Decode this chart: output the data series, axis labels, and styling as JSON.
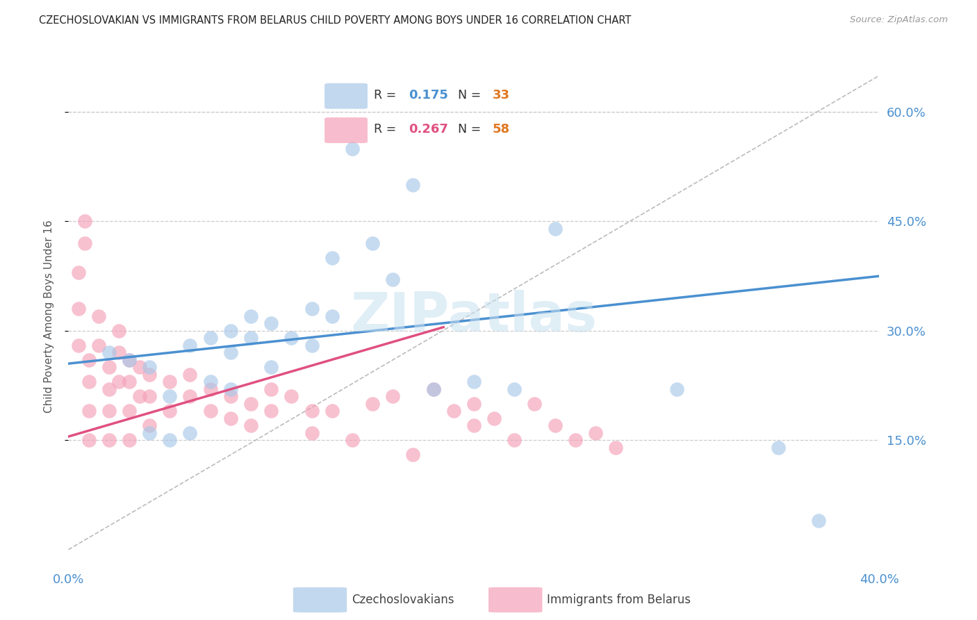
{
  "title": "CZECHOSLOVAKIAN VS IMMIGRANTS FROM BELARUS CHILD POVERTY AMONG BOYS UNDER 16 CORRELATION CHART",
  "source": "Source: ZipAtlas.com",
  "ylabel": "Child Poverty Among Boys Under 16",
  "ytick_labels": [
    "60.0%",
    "45.0%",
    "30.0%",
    "15.0%"
  ],
  "ytick_values": [
    0.6,
    0.45,
    0.3,
    0.15
  ],
  "xlim": [
    0.0,
    0.4
  ],
  "ylim": [
    -0.02,
    0.66
  ],
  "color_blue": "#a8c8e8",
  "color_pink": "#f4a0b8",
  "color_blue_line": "#4a90d0",
  "color_pink_line": "#e05080",
  "color_diag_line": "#bbbbbb",
  "color_title": "#222222",
  "color_source": "#999999",
  "color_axis_blue": "#4a90d0",
  "color_n_orange": "#e07820",
  "watermark": "ZIPatlas",
  "legend_r1": "0.175",
  "legend_n1": "33",
  "legend_r2": "0.267",
  "legend_n2": "58",
  "blue_scatter_x": [
    0.02,
    0.03,
    0.04,
    0.04,
    0.05,
    0.05,
    0.06,
    0.06,
    0.07,
    0.07,
    0.08,
    0.08,
    0.08,
    0.09,
    0.09,
    0.1,
    0.1,
    0.11,
    0.12,
    0.12,
    0.13,
    0.13,
    0.14,
    0.15,
    0.16,
    0.17,
    0.18,
    0.2,
    0.22,
    0.24,
    0.3,
    0.35,
    0.37
  ],
  "blue_scatter_y": [
    0.27,
    0.26,
    0.25,
    0.16,
    0.21,
    0.15,
    0.28,
    0.16,
    0.29,
    0.23,
    0.27,
    0.3,
    0.22,
    0.32,
    0.29,
    0.31,
    0.25,
    0.29,
    0.33,
    0.28,
    0.4,
    0.32,
    0.55,
    0.42,
    0.37,
    0.5,
    0.22,
    0.23,
    0.22,
    0.44,
    0.22,
    0.14,
    0.04
  ],
  "pink_scatter_x": [
    0.005,
    0.005,
    0.005,
    0.008,
    0.008,
    0.01,
    0.01,
    0.01,
    0.01,
    0.015,
    0.015,
    0.02,
    0.02,
    0.02,
    0.02,
    0.025,
    0.025,
    0.025,
    0.03,
    0.03,
    0.03,
    0.03,
    0.035,
    0.035,
    0.04,
    0.04,
    0.04,
    0.05,
    0.05,
    0.06,
    0.06,
    0.07,
    0.07,
    0.08,
    0.08,
    0.09,
    0.09,
    0.1,
    0.1,
    0.11,
    0.12,
    0.12,
    0.13,
    0.14,
    0.15,
    0.16,
    0.17,
    0.18,
    0.19,
    0.2,
    0.2,
    0.21,
    0.22,
    0.23,
    0.24,
    0.25,
    0.26,
    0.27
  ],
  "pink_scatter_y": [
    0.38,
    0.33,
    0.28,
    0.42,
    0.45,
    0.26,
    0.23,
    0.19,
    0.15,
    0.32,
    0.28,
    0.25,
    0.22,
    0.19,
    0.15,
    0.3,
    0.27,
    0.23,
    0.26,
    0.23,
    0.19,
    0.15,
    0.25,
    0.21,
    0.24,
    0.21,
    0.17,
    0.23,
    0.19,
    0.24,
    0.21,
    0.22,
    0.19,
    0.21,
    0.18,
    0.2,
    0.17,
    0.22,
    0.19,
    0.21,
    0.19,
    0.16,
    0.19,
    0.15,
    0.2,
    0.21,
    0.13,
    0.22,
    0.19,
    0.17,
    0.2,
    0.18,
    0.15,
    0.2,
    0.17,
    0.15,
    0.16,
    0.14
  ],
  "blue_line_x": [
    0.0,
    0.4
  ],
  "blue_line_y": [
    0.255,
    0.375
  ],
  "pink_line_x": [
    0.0,
    0.185
  ],
  "pink_line_y": [
    0.155,
    0.305
  ],
  "diag_line_x": [
    0.0,
    0.4
  ],
  "diag_line_y": [
    0.0,
    0.65
  ]
}
